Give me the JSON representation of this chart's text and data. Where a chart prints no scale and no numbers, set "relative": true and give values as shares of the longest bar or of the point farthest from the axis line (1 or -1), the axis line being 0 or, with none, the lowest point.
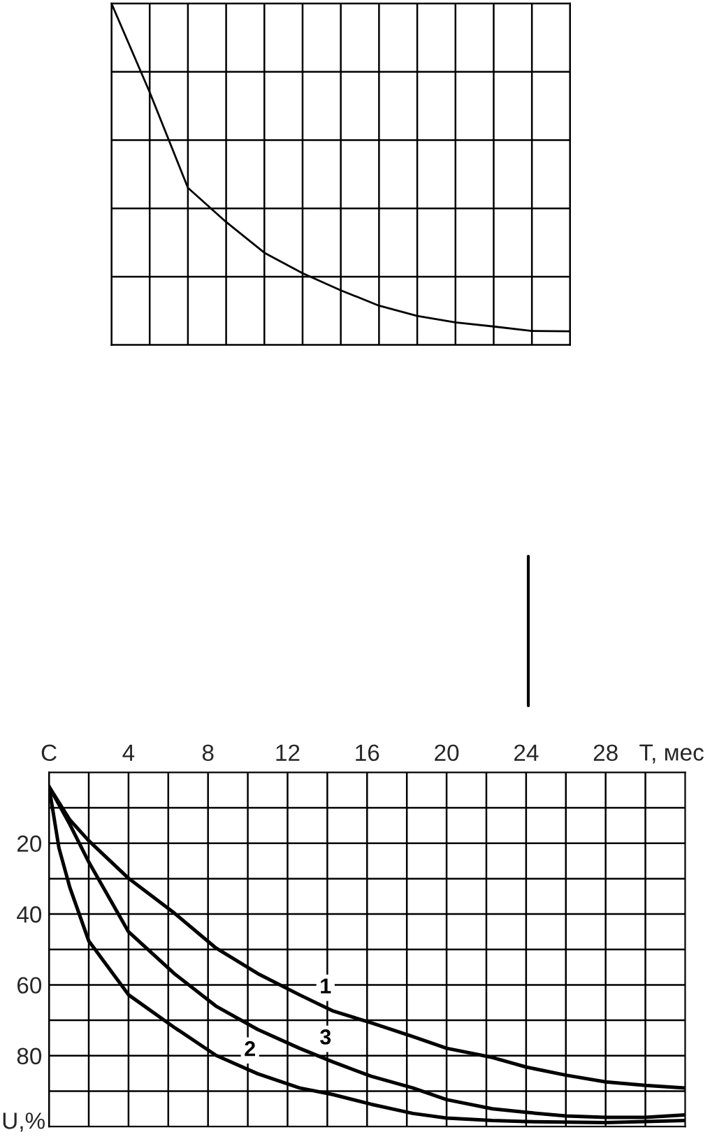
{
  "chart_data": [
    {
      "type": "line",
      "relative": true,
      "grid": true,
      "color": "#000000",
      "categories": [
        null,
        null,
        null,
        null,
        null,
        null,
        null,
        null,
        null,
        null,
        null,
        null,
        null
      ],
      "values": [
        1.0,
        0.74,
        0.46,
        0.36,
        0.27,
        0.21,
        0.16,
        0.115,
        0.085,
        0.066,
        0.054,
        0.041,
        0.04
      ]
    },
    {
      "type": "line",
      "grid": true,
      "xlabel": "T, мес",
      "ylabel": "U,%",
      "xlim": [
        0,
        32
      ],
      "ylim": [
        100,
        0
      ],
      "xticks": [
        {
          "value": 0,
          "label": "C"
        },
        {
          "value": 2,
          "label": null
        },
        4,
        {
          "value": 6,
          "label": null
        },
        8,
        {
          "value": 10,
          "label": null
        },
        12,
        {
          "value": 14,
          "label": null
        },
        16,
        {
          "value": 18,
          "label": null
        },
        20,
        {
          "value": 22,
          "label": null
        },
        24,
        {
          "value": 26,
          "label": null
        },
        28,
        {
          "value": 30,
          "label": null
        }
      ],
      "yticks": [
        {
          "value": 10,
          "label": null
        },
        20,
        {
          "value": 30,
          "label": null
        },
        40,
        {
          "value": 50,
          "label": null
        },
        60,
        {
          "value": 70,
          "label": null
        },
        80,
        {
          "value": 90,
          "label": null
        }
      ],
      "series": [
        {
          "name": "1",
          "color": "#000000",
          "x": [
            0,
            1.05,
            2,
            4,
            6.3,
            8.4,
            10.5,
            12.6,
            14.3,
            16.2,
            18.3,
            20,
            22.3,
            24,
            26,
            28,
            30,
            32
          ],
          "values": [
            4,
            13.4,
            19.3,
            29.9,
            39.7,
            49.6,
            56.8,
            62.8,
            67.4,
            70.7,
            74.6,
            77.9,
            80.5,
            83.2,
            85.5,
            87.4,
            88.4,
            89.1
          ]
        },
        {
          "name": "2",
          "color": "#000000",
          "x": [
            0,
            0.5,
            1.05,
            2,
            4,
            6.3,
            8.4,
            10.5,
            12.6,
            14.3,
            16.2,
            18.3,
            20,
            22.3,
            24,
            28,
            32
          ],
          "values": [
            4,
            21.3,
            32.5,
            47.6,
            62.8,
            72,
            79.9,
            85.1,
            89.1,
            91,
            93.7,
            96.3,
            97.6,
            98.3,
            98.6,
            98.9,
            98.3
          ]
        },
        {
          "name": "3",
          "color": "#000000",
          "x": [
            0,
            1.05,
            2,
            4,
            6.3,
            8.4,
            10.5,
            12.6,
            14.3,
            16.2,
            18.3,
            20,
            22.3,
            24,
            26,
            28,
            30,
            32
          ],
          "values": [
            4,
            14.7,
            25.3,
            45,
            56.8,
            66,
            72.6,
            77.9,
            81.8,
            85.8,
            89.1,
            92.4,
            95,
            96,
            97,
            97.4,
            97.4,
            96.7
          ]
        }
      ]
    }
  ]
}
